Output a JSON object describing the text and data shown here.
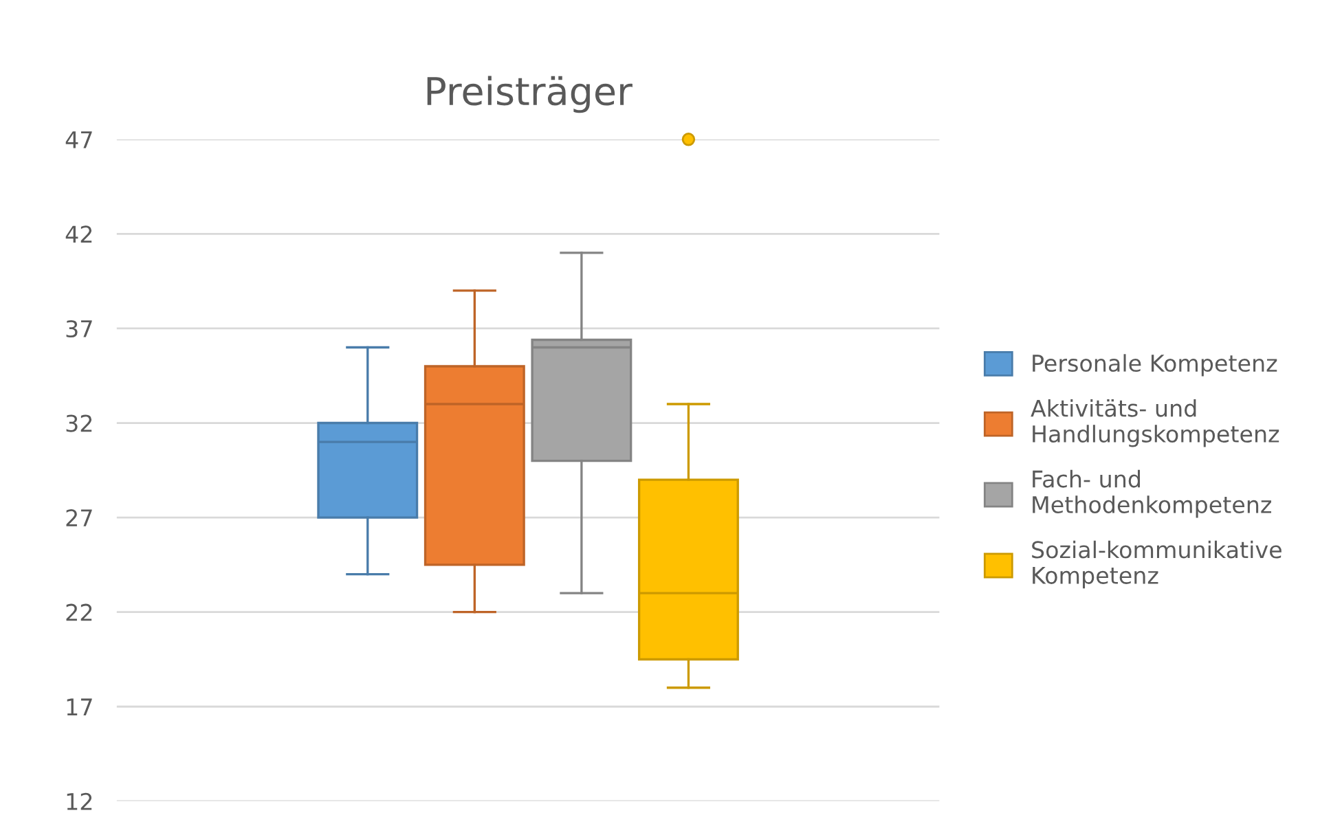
{
  "chart_data": {
    "type": "box",
    "title": "Preisträger",
    "categories": [
      null
    ],
    "series": [
      {
        "name": "Personale Kompetenz",
        "color": "#5b9bd5",
        "boxes": [
          {
            "low": 24,
            "q1": 27,
            "median": 31,
            "q3": 32,
            "high": 36
          }
        ]
      },
      {
        "name": "Aktivitäts- und\nHandlungskompetenz",
        "color": "#ed7d31",
        "boxes": [
          {
            "low": 22,
            "q1": 24.5,
            "median": 33,
            "q3": 35,
            "high": 39
          }
        ]
      },
      {
        "name": "Fach- und\nMethodenkompetenz",
        "color": "#a5a5a5",
        "boxes": [
          {
            "low": 23,
            "q1": 30,
            "median": 36,
            "q3": 36.4,
            "high": 41
          }
        ]
      },
      {
        "name": "Sozial-kommunikative\nKompetenz",
        "color": "#ffc000",
        "boxes": [
          {
            "low": 18,
            "q1": 19.5,
            "median": 23,
            "q3": 29,
            "high": 33,
            "outliers": [
              47
            ]
          }
        ]
      }
    ],
    "ylim": [
      12,
      47
    ],
    "yticks": [
      12,
      17,
      22,
      27,
      32,
      37,
      42,
      47
    ],
    "grid": "y",
    "legend": "right",
    "tick_labels": "y"
  }
}
